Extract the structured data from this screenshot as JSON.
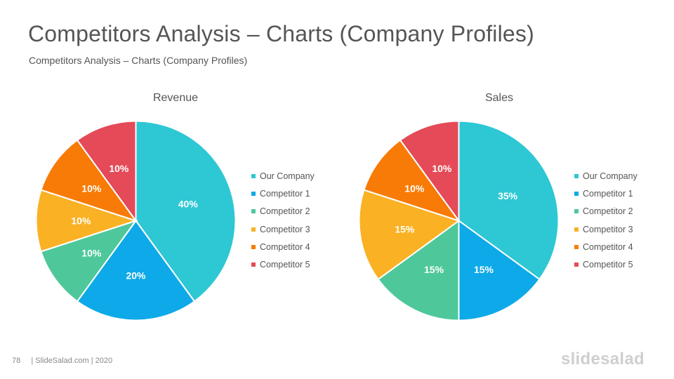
{
  "header": {
    "title": "Competitors Analysis – Charts (Company Profiles)",
    "subtitle": "Competitors Analysis – Charts (Company Profiles)"
  },
  "footer": {
    "page_number": "78",
    "credit": "| SlideSalad.com | 2020",
    "brand": "slidesalad"
  },
  "colors": {
    "Our Company": "#2ec7d4",
    "Competitor 1": "#0ea9e8",
    "Competitor 2": "#4ec89a",
    "Competitor 3": "#fab124",
    "Competitor 4": "#f77b06",
    "Competitor 5": "#e44a57"
  },
  "chart_data": [
    {
      "type": "pie",
      "title": "Revenue",
      "categories": [
        "Our Company",
        "Competitor 1",
        "Competitor 2",
        "Competitor 3",
        "Competitor 4",
        "Competitor 5"
      ],
      "values": [
        40,
        20,
        10,
        10,
        10,
        10
      ],
      "labels": [
        "40%",
        "20%",
        "10%",
        "10%",
        "10%",
        "10%"
      ],
      "legend": "right"
    },
    {
      "type": "pie",
      "title": "Sales",
      "categories": [
        "Our Company",
        "Competitor 1",
        "Competitor 2",
        "Competitor 3",
        "Competitor 4",
        "Competitor 5"
      ],
      "values": [
        35,
        15,
        15,
        15,
        10,
        10
      ],
      "labels": [
        "35%",
        "15%",
        "15%",
        "15%",
        "10%",
        "10%"
      ],
      "legend": "right"
    }
  ]
}
